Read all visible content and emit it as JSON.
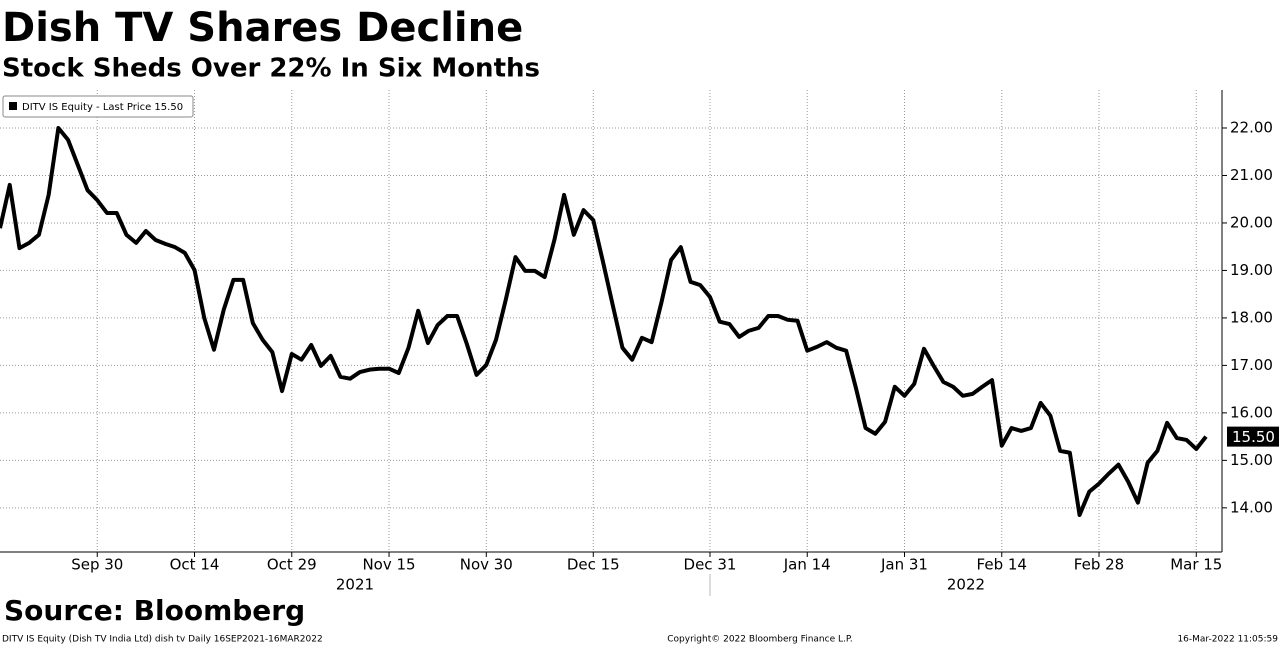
{
  "chart_data": {
    "type": "line",
    "title": "Dish TV Shares Decline",
    "subtitle": "Stock Sheds Over 22% In Six Months",
    "legend": "DITV IS Equity - Last Price 15.50",
    "source": "Source: Bloomberg",
    "footer_left": "DITV IS Equity (Dish TV India Ltd) dish tv  Daily 16SEP2021-16MAR2022",
    "footer_center": "Copyright© 2022 Bloomberg Finance L.P.",
    "footer_right": "16-Mar-2022 11:05:59",
    "years": [
      "2021",
      "2022"
    ],
    "last_label": "15.50",
    "color": "#000000",
    "grid": true,
    "ylim": [
      13.07,
      22.8
    ],
    "yticks": [
      {
        "value": 14,
        "label": "14.00"
      },
      {
        "value": 15,
        "label": "15.00"
      },
      {
        "value": 16,
        "label": "16.00"
      },
      {
        "value": 17,
        "label": "17.00"
      },
      {
        "value": 18,
        "label": "18.00"
      },
      {
        "value": 19,
        "label": "19.00"
      },
      {
        "value": 20,
        "label": "20.00"
      },
      {
        "value": 21,
        "label": "21.00"
      },
      {
        "value": 22,
        "label": "22.00"
      }
    ],
    "categories": [
      null,
      null,
      null,
      null,
      null,
      null,
      null,
      null,
      null,
      null,
      "Sep 30",
      null,
      null,
      null,
      null,
      null,
      null,
      null,
      null,
      null,
      "Oct 14",
      null,
      null,
      null,
      null,
      null,
      null,
      null,
      null,
      null,
      "Oct 29",
      null,
      null,
      null,
      null,
      null,
      null,
      null,
      null,
      null,
      "Nov 15",
      null,
      null,
      null,
      null,
      null,
      null,
      null,
      null,
      null,
      "Nov 30",
      null,
      null,
      null,
      null,
      null,
      null,
      null,
      null,
      null,
      null,
      "Dec 15",
      null,
      null,
      null,
      null,
      null,
      null,
      null,
      null,
      null,
      null,
      null,
      "Dec 31",
      null,
      null,
      null,
      null,
      null,
      null,
      null,
      null,
      null,
      "Jan 14",
      null,
      null,
      null,
      null,
      null,
      null,
      null,
      null,
      null,
      "Jan 31",
      null,
      null,
      null,
      null,
      null,
      null,
      null,
      null,
      null,
      "Feb 14",
      null,
      null,
      null,
      null,
      null,
      null,
      null,
      null,
      null,
      "Feb 28",
      null,
      null,
      null,
      null,
      null,
      null,
      null,
      null,
      null,
      "Mar 15",
      null
    ],
    "values": [
      19.89,
      20.8,
      19.47,
      19.58,
      19.75,
      20.59,
      22.0,
      21.75,
      21.22,
      20.69,
      20.48,
      20.21,
      20.21,
      19.75,
      19.58,
      19.83,
      19.64,
      19.56,
      19.49,
      19.37,
      19.01,
      18.0,
      17.33,
      18.17,
      18.8,
      18.8,
      17.89,
      17.54,
      17.28,
      16.46,
      17.24,
      17.12,
      17.43,
      16.99,
      17.2,
      16.76,
      16.72,
      16.86,
      16.91,
      16.93,
      16.93,
      16.84,
      17.37,
      18.15,
      17.47,
      17.85,
      18.04,
      18.04,
      17.45,
      16.8,
      17.01,
      17.54,
      18.38,
      19.28,
      18.99,
      18.99,
      18.86,
      19.64,
      20.59,
      19.75,
      20.27,
      20.06,
      19.18,
      18.27,
      17.37,
      17.12,
      17.58,
      17.49,
      18.32,
      19.22,
      19.49,
      18.76,
      18.69,
      18.44,
      17.92,
      17.87,
      17.6,
      17.73,
      17.79,
      18.04,
      18.04,
      17.96,
      17.94,
      17.31,
      17.39,
      17.49,
      17.37,
      17.31,
      16.53,
      15.68,
      15.56,
      15.81,
      16.55,
      16.36,
      16.61,
      17.35,
      16.99,
      16.65,
      16.55,
      16.36,
      16.4,
      16.55,
      16.69,
      15.31,
      15.68,
      15.62,
      15.68,
      16.21,
      15.94,
      15.2,
      15.16,
      13.85,
      14.34,
      14.51,
      14.72,
      14.91,
      14.55,
      14.11,
      14.95,
      15.2,
      15.79,
      15.47,
      15.43,
      15.24,
      15.5
    ]
  }
}
